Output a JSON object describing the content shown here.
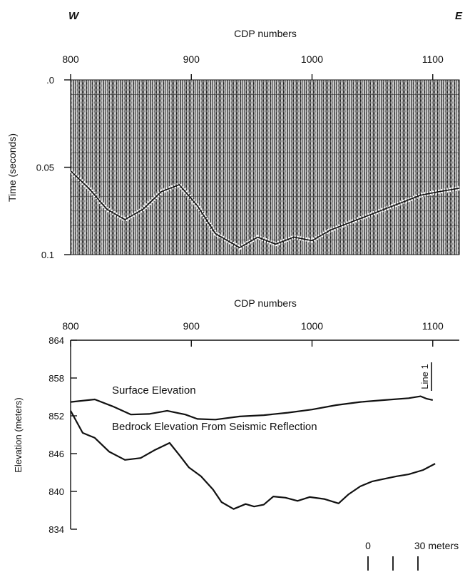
{
  "compass": {
    "west": "W",
    "east": "E"
  },
  "seismic_section": {
    "title": "CDP numbers",
    "xlabel": "CDP numbers",
    "ylabel": "Time (seconds)",
    "x_ticks": [
      "800",
      "900",
      "1000",
      "1100"
    ],
    "y_ticks": [
      ".0",
      "0.05",
      "0.1"
    ]
  },
  "scale_bar": {
    "zero": "0",
    "end": "30 meters"
  },
  "chart_data": [
    {
      "type": "heatmap",
      "title": "",
      "xlabel": "CDP numbers",
      "ylabel": "Time (seconds)",
      "xlim": [
        800,
        1122
      ],
      "ylim": [
        0.1,
        0.0
      ],
      "x_ticks": [
        800,
        900,
        1000,
        1100
      ],
      "y_ticks": [
        0.0,
        0.05,
        0.1
      ],
      "description": "Seismic reflection section (wiggle traces)",
      "reflector": {
        "x": [
          800,
          815,
          830,
          845,
          860,
          875,
          890,
          905,
          920,
          940,
          955,
          970,
          985,
          1000,
          1015,
          1030,
          1045,
          1060,
          1075,
          1090,
          1105,
          1122
        ],
        "y": [
          0.052,
          0.062,
          0.074,
          0.08,
          0.074,
          0.064,
          0.06,
          0.072,
          0.088,
          0.096,
          0.09,
          0.094,
          0.09,
          0.092,
          0.086,
          0.082,
          0.078,
          0.074,
          0.07,
          0.066,
          0.064,
          0.062
        ]
      }
    },
    {
      "type": "line",
      "title": "CDP numbers",
      "xlabel": "CDP numbers",
      "ylabel": "Elevation (meters)",
      "xlim": [
        800,
        1122
      ],
      "ylim": [
        834,
        864
      ],
      "x_ticks": [
        800,
        900,
        1000,
        1100
      ],
      "y_ticks": [
        864,
        858,
        852,
        846,
        840,
        834
      ],
      "line_label": "Line 1",
      "series": [
        {
          "name": "Surface Elevation",
          "x": [
            800,
            820,
            835,
            850,
            865,
            880,
            895,
            905,
            920,
            940,
            960,
            980,
            1000,
            1020,
            1040,
            1060,
            1080,
            1090,
            1095,
            1100
          ],
          "y": [
            854.2,
            854.6,
            853.5,
            852.2,
            852.3,
            852.8,
            852.2,
            851.5,
            851.4,
            851.9,
            852.1,
            852.5,
            853.0,
            853.7,
            854.2,
            854.5,
            854.8,
            855.1,
            854.7,
            854.5
          ]
        },
        {
          "name": "Bedrock Elevation From Seismic Reflection",
          "x": [
            800,
            810,
            820,
            832,
            845,
            858,
            870,
            882,
            890,
            898,
            908,
            918,
            925,
            935,
            945,
            952,
            960,
            968,
            978,
            988,
            998,
            1010,
            1022,
            1030,
            1040,
            1050,
            1060,
            1070,
            1080,
            1092,
            1102
          ],
          "y": [
            852.8,
            849.3,
            848.5,
            846.3,
            845.0,
            845.3,
            846.6,
            847.7,
            845.8,
            843.8,
            842.4,
            840.3,
            838.3,
            837.2,
            838.0,
            837.6,
            837.9,
            839.2,
            839.0,
            838.5,
            839.1,
            838.8,
            838.1,
            839.5,
            840.8,
            841.6,
            842.0,
            842.4,
            842.7,
            843.4,
            844.4
          ]
        }
      ]
    }
  ]
}
